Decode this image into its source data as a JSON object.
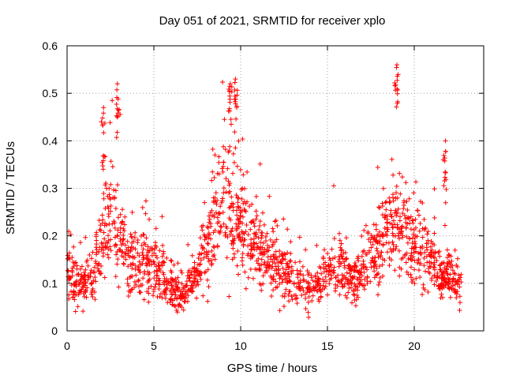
{
  "chart_data": {
    "type": "scatter",
    "title": "Day 051 of 2021, SRMTID for receiver xplo",
    "xlabel": "GPS time / hours",
    "ylabel": "SRMTID / TECUs",
    "xlim": [
      0,
      24
    ],
    "ylim": [
      0,
      0.6
    ],
    "xticks": [
      0,
      5,
      10,
      15,
      20
    ],
    "yticks": [
      0,
      0.1,
      0.2,
      0.3,
      0.4,
      0.5,
      0.6
    ],
    "ytick_labels": [
      "0",
      "0.1",
      "0.2",
      "0.3",
      "0.4",
      "0.5",
      "0.6"
    ],
    "grid": true,
    "marker": "+",
    "color": "#ff0000",
    "x_data_range": [
      0,
      22.7
    ],
    "baseline_profile": {
      "description": "approximate central SRMTID level (TECU) versus GPS hour",
      "x": [
        0,
        0.5,
        1,
        1.5,
        2,
        2.5,
        3,
        3.5,
        4,
        4.5,
        5,
        5.5,
        6,
        6.5,
        7,
        7.5,
        8,
        8.5,
        9,
        9.5,
        10,
        10.5,
        11,
        11.5,
        12,
        12.5,
        13,
        13.5,
        14,
        14.5,
        15,
        15.5,
        16,
        16.5,
        17,
        17.5,
        18,
        18.5,
        19,
        19.5,
        20,
        20.5,
        21,
        21.5,
        22,
        22.5,
        22.7
      ],
      "y": [
        0.14,
        0.09,
        0.1,
        0.13,
        0.19,
        0.24,
        0.2,
        0.15,
        0.14,
        0.14,
        0.13,
        0.12,
        0.09,
        0.07,
        0.09,
        0.12,
        0.16,
        0.25,
        0.29,
        0.24,
        0.22,
        0.2,
        0.17,
        0.16,
        0.14,
        0.12,
        0.11,
        0.1,
        0.09,
        0.1,
        0.13,
        0.14,
        0.12,
        0.11,
        0.12,
        0.15,
        0.19,
        0.2,
        0.22,
        0.2,
        0.17,
        0.15,
        0.15,
        0.1,
        0.12,
        0.1,
        0.09
      ]
    },
    "peaks": [
      {
        "x": 2.1,
        "y": 0.47
      },
      {
        "x": 2.9,
        "y": 0.52
      },
      {
        "x": 9.4,
        "y": 0.52
      },
      {
        "x": 9.7,
        "y": 0.53
      },
      {
        "x": 19.0,
        "y": 0.56
      },
      {
        "x": 21.8,
        "y": 0.4
      }
    ],
    "points_per_hour": 80
  }
}
